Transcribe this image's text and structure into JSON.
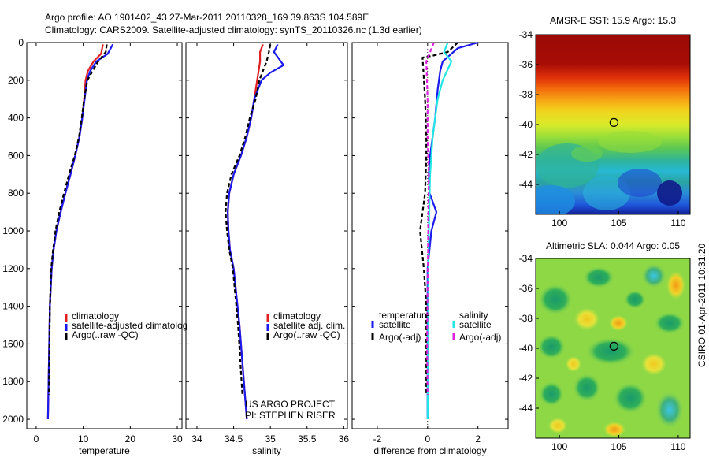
{
  "header": {
    "line1": "Argo profile: AO 1901402_43 27-Mar-2011 20110328_169 39.863S 104.589E",
    "line2": "Climatology: CARS2009. Satellite-adjusted climatology: synTS_20110326.nc (1.3d earlier)"
  },
  "side_stamp": "CSIRO 01-Apr-2011 10:31:20",
  "credits": [
    "US ARGO PROJECT",
    "PI: STEPHEN RISER"
  ],
  "colors": {
    "red": "#e02020",
    "blue": "#1a1aee",
    "black": "#000000",
    "cyan": "#22e6e6",
    "magenta": "#dd22dd"
  },
  "chart_data": [
    {
      "type": "line",
      "title": "",
      "xlabel": "temperature",
      "ylabel": "",
      "xlim": [
        -2,
        31
      ],
      "ylim": [
        2050,
        0
      ],
      "xticks": [
        0,
        10,
        20,
        30
      ],
      "xtick_labels": [
        "0",
        "10",
        "20",
        "30"
      ],
      "yticks": [
        0,
        200,
        400,
        600,
        800,
        1000,
        1200,
        1400,
        1600,
        1800,
        2000
      ],
      "ytick_labels": [
        "0",
        "200",
        "400",
        "600",
        "800",
        "1000",
        "1200",
        "1400",
        "1600",
        "1800",
        "2000"
      ],
      "legend": [
        "climatology",
        "satellite-adjusted climatolog",
        "Argo(..raw -QC)"
      ],
      "series": [
        {
          "name": "climatology",
          "color": "red",
          "dash": "",
          "x": [
            14.2,
            13.8,
            12.2,
            11.0,
            10.5,
            10.2,
            9.8,
            9.2,
            8.3,
            7.3,
            6.2,
            5.2,
            4.3,
            3.7,
            3.3,
            2.9,
            2.7,
            2.5
          ],
          "y": [
            10,
            60,
            100,
            150,
            200,
            300,
            400,
            500,
            600,
            700,
            800,
            900,
            1000,
            1100,
            1200,
            1400,
            1700,
            2000
          ]
        },
        {
          "name": "satellite-adjusted climatology",
          "color": "blue",
          "dash": "",
          "x": [
            16.3,
            15.2,
            12.8,
            11.5,
            10.8,
            10.3,
            9.8,
            9.2,
            8.3,
            7.3,
            6.2,
            5.2,
            4.3,
            3.7,
            3.3,
            2.9,
            2.7,
            2.5
          ],
          "y": [
            10,
            60,
            100,
            150,
            200,
            300,
            400,
            500,
            600,
            700,
            800,
            900,
            1000,
            1100,
            1200,
            1400,
            1700,
            2000
          ]
        },
        {
          "name": "Argo(..raw -QC)",
          "color": "black",
          "dash": "5,3",
          "x": [
            15.0,
            14.8,
            13.2,
            12.0,
            10.9,
            10.2,
            9.7,
            9.1,
            8.2,
            7.0,
            5.9,
            4.9,
            4.1,
            3.6,
            3.2,
            2.9,
            2.7
          ],
          "y": [
            10,
            50,
            100,
            150,
            200,
            300,
            400,
            500,
            600,
            700,
            800,
            900,
            1000,
            1100,
            1200,
            1400,
            1870
          ]
        }
      ]
    },
    {
      "type": "line",
      "title": "",
      "xlabel": "salinity",
      "ylabel": "",
      "xlim": [
        33.85,
        36.05
      ],
      "ylim": [
        2050,
        0
      ],
      "xticks": [
        34,
        34.5,
        35,
        35.5,
        36
      ],
      "xtick_labels": [
        "34",
        "34.5",
        "35",
        "35.5",
        "36"
      ],
      "yticks": [
        0,
        200,
        400,
        600,
        800,
        1000,
        1200,
        1400,
        1600,
        1800,
        2000
      ],
      "ytick_labels": [],
      "legend": [
        "climatology",
        "satellite adj. clim.",
        "Argo(..raw -QC)"
      ],
      "series": [
        {
          "name": "climatology",
          "color": "red",
          "dash": "",
          "x": [
            34.9,
            34.86,
            34.86,
            34.84,
            34.82,
            34.78,
            34.74,
            34.68,
            34.6,
            34.5,
            34.44,
            34.42,
            34.43,
            34.45,
            34.5,
            34.58,
            34.68
          ],
          "y": [
            10,
            50,
            100,
            150,
            200,
            300,
            400,
            500,
            600,
            700,
            800,
            900,
            1000,
            1100,
            1200,
            1500,
            2000
          ]
        },
        {
          "name": "satellite adj. clim.",
          "color": "blue",
          "dash": "",
          "x": [
            35.1,
            35.05,
            35.18,
            35.0,
            34.88,
            34.78,
            34.74,
            34.68,
            34.6,
            34.5,
            34.44,
            34.42,
            34.43,
            34.45,
            34.5,
            34.58,
            34.68
          ],
          "y": [
            10,
            50,
            120,
            160,
            200,
            300,
            400,
            500,
            600,
            700,
            800,
            900,
            1000,
            1100,
            1200,
            1500,
            2000
          ]
        },
        {
          "name": "Argo(..raw -QC)",
          "color": "black",
          "dash": "5,3",
          "x": [
            35.0,
            34.98,
            34.95,
            34.9,
            34.85,
            34.8,
            34.72,
            34.66,
            34.58,
            34.47,
            34.41,
            34.39,
            34.41,
            34.44,
            34.49,
            34.56,
            34.62
          ],
          "y": [
            10,
            50,
            100,
            150,
            200,
            300,
            400,
            500,
            600,
            700,
            800,
            900,
            1000,
            1100,
            1200,
            1500,
            1870
          ]
        }
      ]
    },
    {
      "type": "line",
      "title": "",
      "xlabel": "difference from climatology",
      "ylabel": "",
      "xlim": [
        -3,
        3.2
      ],
      "ylim": [
        2050,
        0
      ],
      "xticks": [
        -2,
        0,
        2
      ],
      "xtick_labels": [
        "-2",
        "0",
        "2"
      ],
      "yticks": [
        0,
        200,
        400,
        600,
        800,
        1000,
        1200,
        1400,
        1600,
        1800,
        2000
      ],
      "ytick_labels": [],
      "legend_groups": [
        {
          "heading": "temperature",
          "items": [
            "satellite",
            "Argo(-adj)"
          ]
        },
        {
          "heading": "salinity",
          "items": [
            "satellite",
            "Argo(-adj)"
          ]
        }
      ],
      "series": [
        {
          "name": "temperature satellite",
          "color": "blue",
          "dash": "",
          "x": [
            2.0,
            1.2,
            0.6,
            0.5,
            0.4,
            0.3,
            0.2,
            0.1,
            0.05,
            0.08,
            0.35,
            0.15,
            0.0,
            0.0,
            0.0
          ],
          "y": [
            0,
            30,
            100,
            150,
            250,
            400,
            500,
            600,
            700,
            800,
            900,
            1000,
            1200,
            1600,
            2000
          ]
        },
        {
          "name": "temperature Argo(-adj)",
          "color": "black",
          "dash": "5,3",
          "x": [
            1.2,
            0.8,
            0.2,
            -0.2,
            -0.1,
            -0.05,
            -0.05,
            -0.1,
            -0.3,
            -0.15,
            -0.05,
            -0.05
          ],
          "y": [
            0,
            50,
            70,
            80,
            300,
            500,
            600,
            800,
            1000,
            1200,
            1400,
            1870
          ]
        },
        {
          "name": "salinity satellite",
          "color": "cyan",
          "dash": "",
          "x": [
            0.8,
            0.65,
            0.95,
            0.6,
            0.4,
            0.3,
            0.2,
            0.15,
            0.1,
            0.08,
            0.05,
            0.03,
            0.02,
            0.0
          ],
          "y": [
            0,
            50,
            100,
            200,
            300,
            400,
            500,
            600,
            700,
            800,
            1000,
            1200,
            1500,
            2000
          ]
        },
        {
          "name": "salinity Argo(-adj)",
          "color": "magenta",
          "dash": "5,3",
          "x": [
            0.25,
            -0.05,
            0.0,
            0.0,
            0.05,
            0.03,
            0.02,
            0.0,
            -0.02,
            0.0
          ],
          "y": [
            0,
            100,
            300,
            500,
            700,
            900,
            1100,
            1300,
            1600,
            1870
          ]
        }
      ]
    },
    {
      "type": "heatmap",
      "title": "AMSR-E SST: 15.9 Argo: 15.3",
      "xlabel": "",
      "ylabel": "",
      "xlim": [
        98,
        111
      ],
      "ylim": [
        -46,
        -34
      ],
      "xticks": [
        100,
        105,
        110
      ],
      "xtick_labels": [
        "100",
        "105",
        "110"
      ],
      "yticks": [
        -34,
        -36,
        -38,
        -40,
        -42,
        -44
      ],
      "ytick_labels": [
        "-34",
        "-36",
        "-38",
        "-40",
        "-42",
        "-44"
      ],
      "marker": {
        "lon": 104.589,
        "lat": -39.863
      }
    },
    {
      "type": "heatmap",
      "title": "Altimetric SLA: 0.044 Argo: 0.05",
      "xlabel": "",
      "ylabel": "",
      "xlim": [
        98,
        111
      ],
      "ylim": [
        -46,
        -34
      ],
      "xticks": [
        100,
        105,
        110
      ],
      "xtick_labels": [
        "100",
        "105",
        "110"
      ],
      "yticks": [
        -34,
        -36,
        -38,
        -40,
        -42,
        -44
      ],
      "ytick_labels": [
        "-34",
        "-36",
        "-38",
        "-40",
        "-42",
        "-44"
      ],
      "marker": {
        "lon": 104.589,
        "lat": -39.863
      }
    }
  ]
}
